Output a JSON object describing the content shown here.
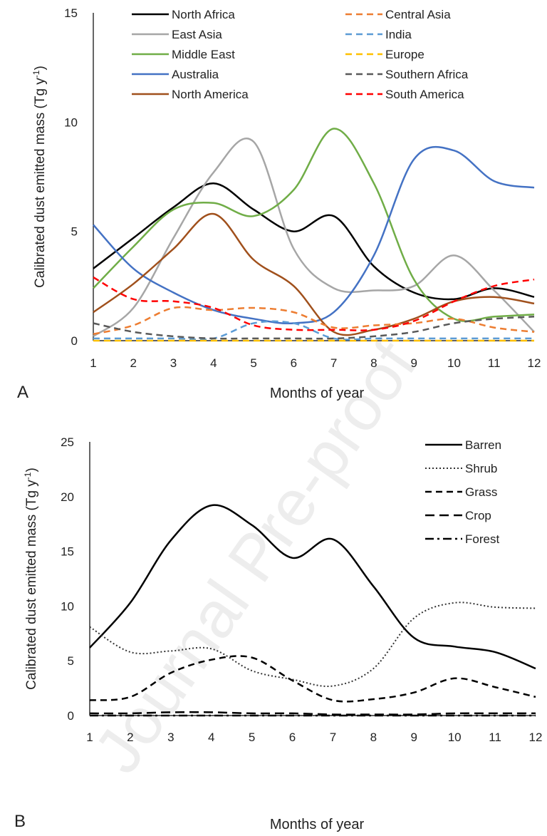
{
  "watermark": "Journal Pre-proof",
  "chart_data": [
    {
      "panel_label": "A",
      "type": "line",
      "xlabel": "Months of year",
      "ylabel": "Calibrated dust emitted mass (Tg y",
      "ylabel_sup": "-1",
      "ylabel_close": ")",
      "xlim": [
        1,
        12
      ],
      "ylim": [
        0,
        15
      ],
      "x_ticks": [
        "1",
        "2",
        "3",
        "4",
        "5",
        "6",
        "7",
        "8",
        "9",
        "10",
        "11",
        "12"
      ],
      "y_ticks": [
        0,
        5,
        10,
        15
      ],
      "legend_position": "top",
      "x": [
        1,
        2,
        3,
        4,
        5,
        6,
        7,
        8,
        9,
        10,
        11,
        12
      ],
      "series": [
        {
          "name": "North Africa",
          "color": "#000000",
          "dash": "solid",
          "values": [
            3.3,
            4.7,
            6.1,
            7.2,
            6.0,
            5.0,
            5.7,
            3.4,
            2.2,
            1.9,
            2.4,
            2.0
          ]
        },
        {
          "name": "East Asia",
          "color": "#a6a6a6",
          "dash": "solid",
          "values": [
            0.2,
            1.5,
            4.7,
            7.7,
            9.1,
            4.2,
            2.4,
            2.3,
            2.5,
            3.9,
            2.3,
            0.4
          ]
        },
        {
          "name": "Middle East",
          "color": "#70ad47",
          "dash": "solid",
          "values": [
            2.4,
            4.3,
            6.0,
            6.3,
            5.7,
            6.9,
            9.7,
            7.2,
            2.8,
            1.0,
            1.1,
            1.2
          ]
        },
        {
          "name": "Australia",
          "color": "#4472c4",
          "dash": "solid",
          "values": [
            5.3,
            3.3,
            2.2,
            1.4,
            1.0,
            0.8,
            1.3,
            3.9,
            8.3,
            8.7,
            7.3,
            7.0
          ]
        },
        {
          "name": "North America",
          "color": "#a0501c",
          "dash": "solid",
          "values": [
            1.3,
            2.6,
            4.2,
            5.8,
            3.7,
            2.5,
            0.4,
            0.5,
            1.0,
            1.8,
            2.0,
            1.7
          ]
        },
        {
          "name": "Central Asia",
          "color": "#ed7d31",
          "dash": "dash",
          "values": [
            0.3,
            0.7,
            1.5,
            1.4,
            1.5,
            1.3,
            0.6,
            0.7,
            0.8,
            1.0,
            0.6,
            0.4
          ]
        },
        {
          "name": "India",
          "color": "#5b9bd5",
          "dash": "dash",
          "values": [
            0.1,
            0.1,
            0.1,
            0.1,
            0.8,
            0.8,
            0.1,
            0.1,
            0.1,
            0.1,
            0.1,
            0.1
          ]
        },
        {
          "name": "Europe",
          "color": "#ffc000",
          "dash": "dash",
          "values": [
            0.0,
            0.0,
            0.0,
            0.0,
            0.0,
            0.0,
            0.0,
            0.0,
            0.0,
            0.0,
            0.0,
            0.0
          ]
        },
        {
          "name": "Southern Africa",
          "color": "#595959",
          "dash": "dash",
          "values": [
            0.8,
            0.4,
            0.2,
            0.1,
            0.1,
            0.1,
            0.1,
            0.2,
            0.4,
            0.8,
            1.0,
            1.1
          ]
        },
        {
          "name": "South America",
          "color": "#ff0000",
          "dash": "dash",
          "values": [
            2.9,
            1.9,
            1.8,
            1.5,
            0.7,
            0.5,
            0.5,
            0.5,
            0.9,
            1.8,
            2.5,
            2.8
          ]
        }
      ]
    },
    {
      "panel_label": "B",
      "type": "line",
      "xlabel": "Months of year",
      "ylabel": "Calibrated dust emitted mass (Tg y",
      "ylabel_sup": "-1",
      "ylabel_close": ")",
      "xlim": [
        1,
        12
      ],
      "ylim": [
        0,
        25
      ],
      "x_ticks": [
        "1",
        "2",
        "3",
        "4",
        "5",
        "6",
        "7",
        "8",
        "9",
        "10",
        "11",
        "12"
      ],
      "y_ticks": [
        0,
        5,
        10,
        15,
        20,
        25
      ],
      "legend_position": "top-right",
      "x": [
        1,
        2,
        3,
        4,
        5,
        6,
        7,
        8,
        9,
        10,
        11,
        12
      ],
      "series": [
        {
          "name": "Barren",
          "color": "#000000",
          "dash": "solid",
          "values": [
            6.2,
            10.3,
            16.0,
            19.2,
            17.4,
            14.4,
            16.1,
            11.8,
            7.1,
            6.3,
            5.8,
            4.3
          ]
        },
        {
          "name": "Shrub",
          "color": "#333333",
          "dash": "dot",
          "values": [
            8.1,
            5.8,
            5.9,
            6.1,
            4.1,
            3.3,
            2.7,
            4.3,
            8.9,
            10.3,
            9.9,
            9.8
          ]
        },
        {
          "name": "Grass",
          "color": "#000000",
          "dash": "dash",
          "values": [
            1.4,
            1.7,
            3.9,
            5.1,
            5.3,
            3.2,
            1.4,
            1.5,
            2.1,
            3.4,
            2.6,
            1.7
          ]
        },
        {
          "name": "Crop",
          "color": "#000000",
          "dash": "longdash",
          "values": [
            0.2,
            0.2,
            0.3,
            0.3,
            0.2,
            0.2,
            0.1,
            0.1,
            0.1,
            0.2,
            0.2,
            0.2
          ]
        },
        {
          "name": "Forest",
          "color": "#000000",
          "dash": "dashdot",
          "values": [
            0.0,
            0.0,
            0.0,
            0.0,
            0.0,
            0.0,
            0.0,
            0.0,
            0.0,
            0.0,
            0.0,
            0.0
          ]
        }
      ]
    }
  ]
}
